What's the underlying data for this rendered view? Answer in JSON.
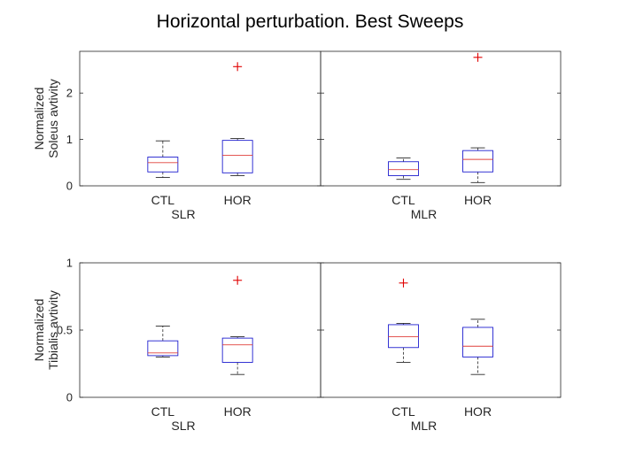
{
  "figure": {
    "title": "Horizontal perturbation. Best Sweeps"
  },
  "chart_data": [
    {
      "type": "box",
      "ylabel": [
        "Normalized",
        "Soleus avtivity"
      ],
      "ylim": [
        0,
        2.9
      ],
      "yticks": [
        0,
        1,
        2
      ],
      "ytick_labels": [
        "0",
        "1",
        "2"
      ],
      "groups": [
        {
          "label": "SLR",
          "categories": [
            "CTL",
            "HOR"
          ],
          "boxes": [
            {
              "min": 0.18,
              "q1": 0.3,
              "median": 0.5,
              "q3": 0.62,
              "max": 0.97,
              "outliers": []
            },
            {
              "min": 0.22,
              "q1": 0.28,
              "median": 0.66,
              "q3": 0.98,
              "max": 1.02,
              "outliers": [
                2.57
              ]
            }
          ]
        },
        {
          "label": "MLR",
          "categories": [
            "CTL",
            "HOR"
          ],
          "boxes": [
            {
              "min": 0.14,
              "q1": 0.22,
              "median": 0.35,
              "q3": 0.52,
              "max": 0.6,
              "outliers": []
            },
            {
              "min": 0.07,
              "q1": 0.3,
              "median": 0.57,
              "q3": 0.76,
              "max": 0.82,
              "outliers": [
                2.77
              ]
            }
          ]
        }
      ]
    },
    {
      "type": "box",
      "ylabel": [
        "Normalized",
        "Tibialis avtivity"
      ],
      "ylim": [
        0,
        1
      ],
      "yticks": [
        0,
        0.5,
        1
      ],
      "ytick_labels": [
        "0",
        "0.5",
        "1"
      ],
      "groups": [
        {
          "label": "SLR",
          "categories": [
            "CTL",
            "HOR"
          ],
          "boxes": [
            {
              "min": 0.3,
              "q1": 0.31,
              "median": 0.33,
              "q3": 0.42,
              "max": 0.53,
              "outliers": []
            },
            {
              "min": 0.17,
              "q1": 0.26,
              "median": 0.39,
              "q3": 0.44,
              "max": 0.45,
              "outliers": [
                0.87
              ]
            }
          ]
        },
        {
          "label": "MLR",
          "categories": [
            "CTL",
            "HOR"
          ],
          "boxes": [
            {
              "min": 0.26,
              "q1": 0.37,
              "median": 0.45,
              "q3": 0.54,
              "max": 0.55,
              "outliers": [
                0.85
              ]
            },
            {
              "min": 0.17,
              "q1": 0.3,
              "median": 0.38,
              "q3": 0.52,
              "max": 0.58,
              "outliers": []
            }
          ]
        }
      ]
    }
  ],
  "colors": {
    "box": "#1f1fcf",
    "median": "#e0413b",
    "whisker": "#262626",
    "outlier": "#e00000",
    "axis": "#262626"
  }
}
